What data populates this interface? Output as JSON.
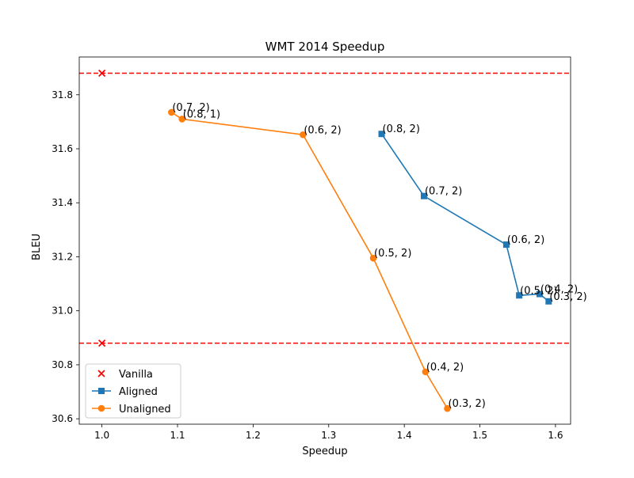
{
  "chart_data": {
    "type": "line",
    "title": "WMT 2014 Speedup",
    "xlabel": "Speedup",
    "ylabel": "BLEU",
    "xlim": [
      0.97,
      1.62
    ],
    "ylim": [
      30.58,
      31.94
    ],
    "xticks": [
      1.0,
      1.1,
      1.2,
      1.3,
      1.4,
      1.5,
      1.6
    ],
    "xtick_labels": [
      "1.0",
      "1.1",
      "1.2",
      "1.3",
      "1.4",
      "1.5",
      "1.6"
    ],
    "yticks": [
      30.6,
      30.8,
      31.0,
      31.2,
      31.4,
      31.6,
      31.8
    ],
    "ytick_labels": [
      "30.6",
      "30.8",
      "31.0",
      "31.2",
      "31.4",
      "31.6",
      "31.8"
    ],
    "grid": false,
    "legend_position": "lower-left",
    "reference_lines": [
      {
        "y": 31.88,
        "color": "#ff0000",
        "style": "dashed"
      },
      {
        "y": 30.88,
        "color": "#ff0000",
        "style": "dashed"
      }
    ],
    "series": [
      {
        "name": "Vanilla",
        "marker": "x",
        "line": false,
        "color": "#ff0000",
        "points": [
          {
            "x": 1.0,
            "y": 31.88
          },
          {
            "x": 1.0,
            "y": 30.88
          }
        ]
      },
      {
        "name": "Aligned",
        "marker": "square",
        "line": true,
        "color": "#1f77b4",
        "points": [
          {
            "x": 1.37,
            "y": 31.655,
            "label": "(0.8, 2)"
          },
          {
            "x": 1.426,
            "y": 31.425,
            "label": "(0.7, 2)"
          },
          {
            "x": 1.535,
            "y": 31.245,
            "label": "(0.6, 2)"
          },
          {
            "x": 1.552,
            "y": 31.057,
            "label": "(0.5, 2)"
          },
          {
            "x": 1.579,
            "y": 31.062,
            "label": "(0.4, 2)"
          },
          {
            "x": 1.591,
            "y": 31.035,
            "label": "(0.3, 2)"
          }
        ]
      },
      {
        "name": "Unaligned",
        "marker": "circle",
        "line": true,
        "color": "#ff7f0e",
        "points": [
          {
            "x": 1.092,
            "y": 31.735,
            "label": "(0.7, 2)"
          },
          {
            "x": 1.106,
            "y": 31.71,
            "label": "(0.8, 1)"
          },
          {
            "x": 1.266,
            "y": 31.652,
            "label": "(0.6, 2)"
          },
          {
            "x": 1.359,
            "y": 31.195,
            "label": "(0.5, 2)"
          },
          {
            "x": 1.428,
            "y": 30.774,
            "label": "(0.4, 2)"
          },
          {
            "x": 1.457,
            "y": 30.638,
            "label": "(0.3, 2)"
          }
        ]
      }
    ]
  }
}
